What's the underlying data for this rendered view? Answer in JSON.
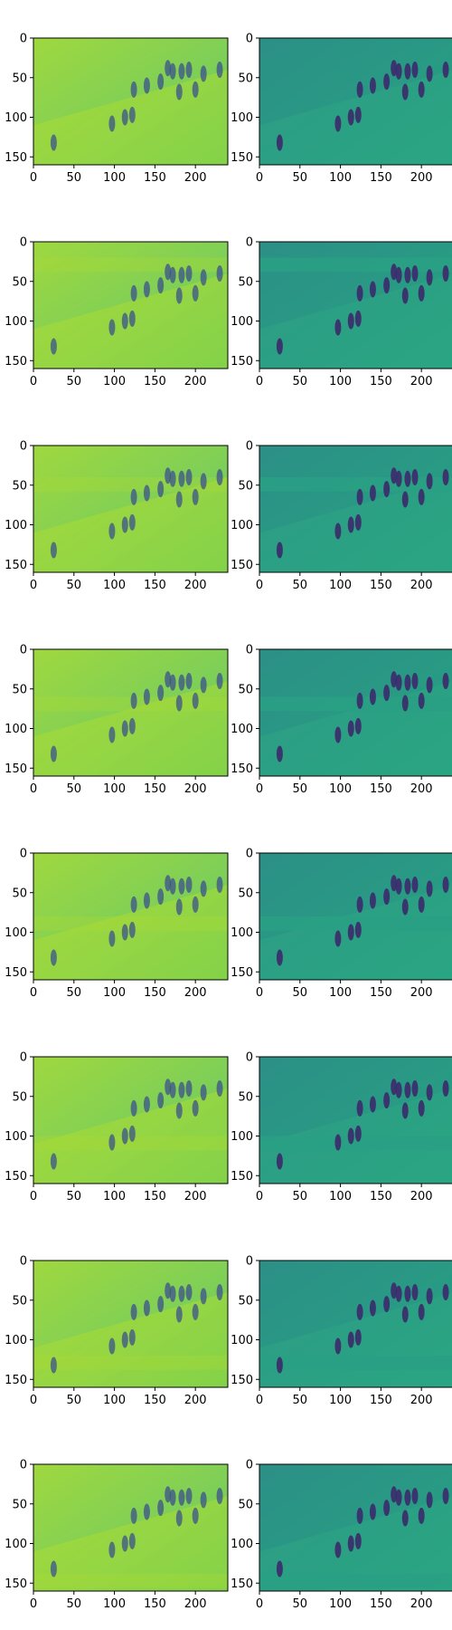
{
  "figure": {
    "rows": 8,
    "cols": 2,
    "colormap": "viridis",
    "x_ticks": [
      "0",
      "50",
      "100",
      "150",
      "200"
    ],
    "y_ticks": [
      "0",
      "50",
      "100",
      "150"
    ],
    "x_range": [
      0,
      240
    ],
    "y_range": [
      0,
      160
    ],
    "columns": [
      {
        "kind": "reconstruction",
        "base_color": "#8fd04f",
        "figure_color": "#3b528b"
      },
      {
        "kind": "residual",
        "base_color": "#2a9a85",
        "figure_color": "#3b2a6b"
      }
    ],
    "row_bands": [
      {
        "row": 0,
        "band_y": [
          0,
          0
        ]
      },
      {
        "row": 1,
        "band_y": [
          20,
          38
        ]
      },
      {
        "row": 2,
        "band_y": [
          40,
          58
        ]
      },
      {
        "row": 3,
        "band_y": [
          60,
          78
        ]
      },
      {
        "row": 4,
        "band_y": [
          80,
          98
        ]
      },
      {
        "row": 5,
        "band_y": [
          100,
          118
        ]
      },
      {
        "row": 6,
        "band_y": [
          120,
          138
        ]
      },
      {
        "row": 7,
        "band_y": [
          138,
          156
        ]
      }
    ],
    "subjects": [
      {
        "x": 25,
        "y": 132
      },
      {
        "x": 97,
        "y": 108
      },
      {
        "x": 113,
        "y": 100
      },
      {
        "x": 122,
        "y": 97
      },
      {
        "x": 124,
        "y": 65
      },
      {
        "x": 140,
        "y": 60
      },
      {
        "x": 157,
        "y": 55
      },
      {
        "x": 166,
        "y": 38
      },
      {
        "x": 172,
        "y": 42
      },
      {
        "x": 180,
        "y": 68
      },
      {
        "x": 183,
        "y": 42
      },
      {
        "x": 192,
        "y": 40
      },
      {
        "x": 200,
        "y": 65
      },
      {
        "x": 210,
        "y": 45
      },
      {
        "x": 230,
        "y": 40
      }
    ]
  }
}
